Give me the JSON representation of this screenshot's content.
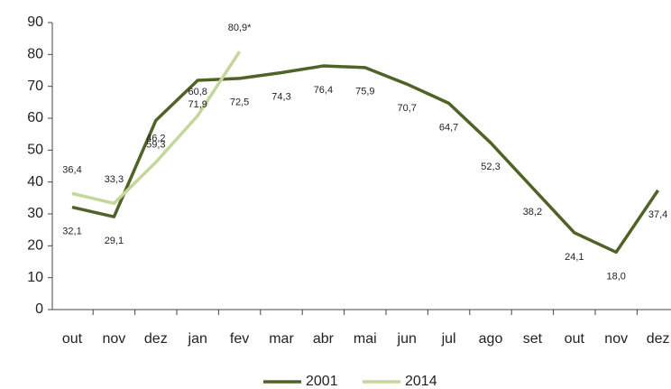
{
  "chart_data": {
    "type": "line",
    "categories": [
      "out",
      "nov",
      "dez",
      "jan",
      "fev",
      "mar",
      "abr",
      "mai",
      "jun",
      "jul",
      "ago",
      "set",
      "out",
      "nov",
      "dez"
    ],
    "series": [
      {
        "name": "2001",
        "color": "#4f6228",
        "values": [
          32.1,
          29.1,
          59.3,
          71.9,
          72.5,
          74.3,
          76.4,
          75.9,
          70.7,
          64.7,
          52.3,
          38.2,
          24.1,
          18.0,
          37.4
        ],
        "value_labels": [
          "32,1",
          "29,1",
          "59,3",
          "71,9",
          "72,5",
          "74,3",
          "76,4",
          "75,9",
          "70,7",
          "64,7",
          "52,3",
          "38,2",
          "24,1",
          "18,0",
          "37,4"
        ]
      },
      {
        "name": "2014",
        "color": "#c3d69b",
        "values": [
          36.4,
          33.3,
          46.2,
          60.8,
          80.9,
          null,
          null,
          null,
          null,
          null,
          null,
          null,
          null,
          null,
          null
        ],
        "value_labels": [
          "36,4",
          "33,3",
          "46,2",
          "60,8",
          "80,9*",
          null,
          null,
          null,
          null,
          null,
          null,
          null,
          null,
          null,
          null
        ]
      }
    ],
    "ylim": [
      0,
      90
    ],
    "yticks": [
      0,
      10,
      20,
      30,
      40,
      50,
      60,
      70,
      80,
      90
    ],
    "grid": false,
    "legend": "bottom"
  }
}
